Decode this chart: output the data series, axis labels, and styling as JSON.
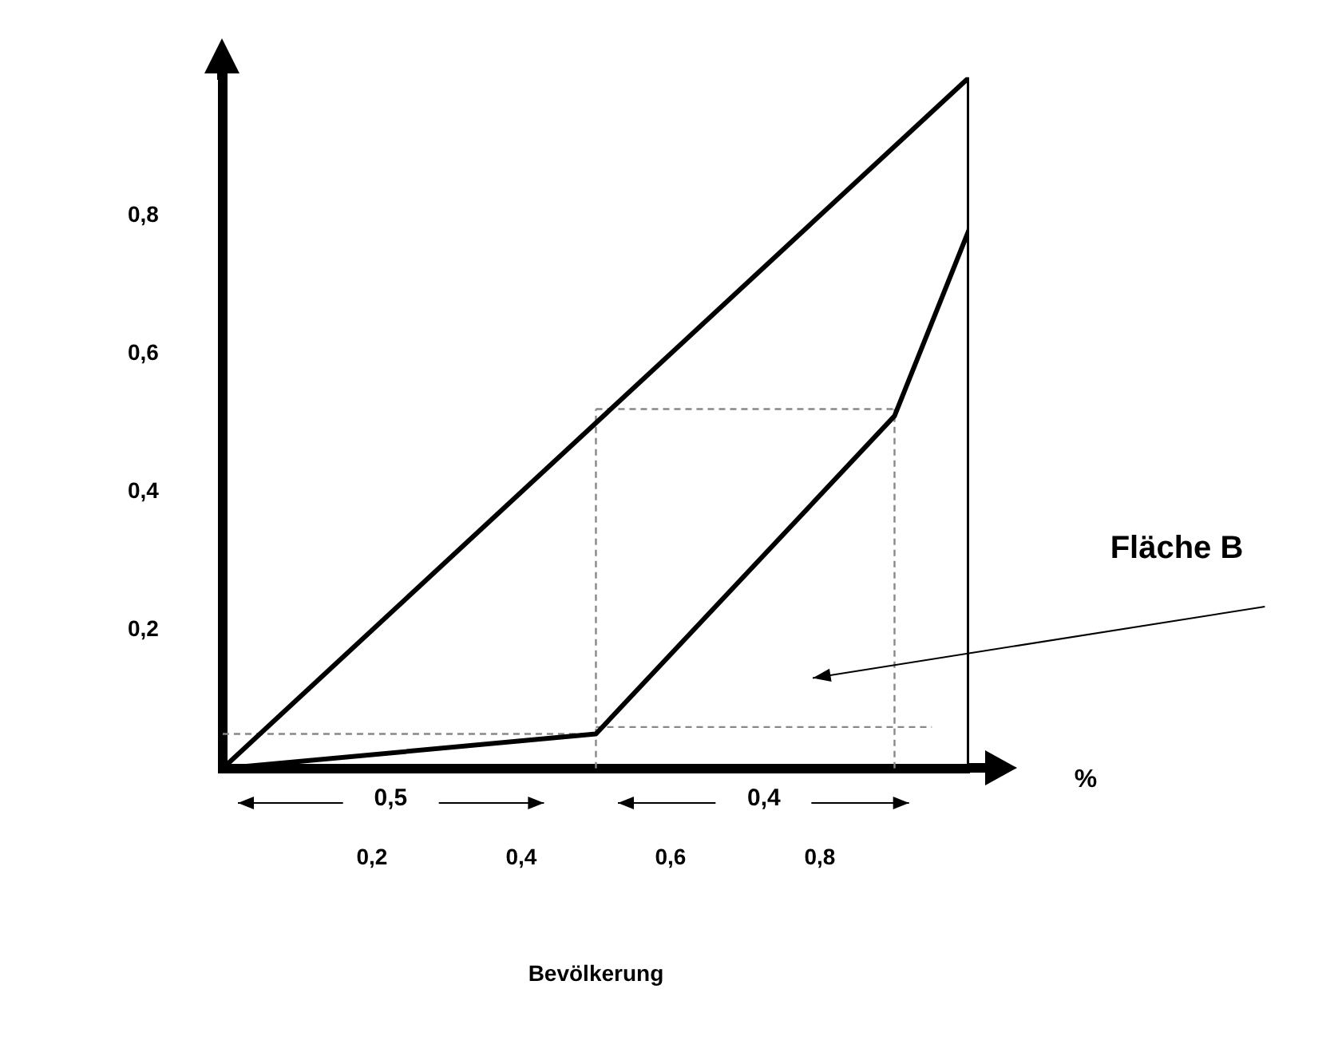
{
  "chart_data": {
    "type": "line",
    "xlabel": "Bevölkerung",
    "xlim": [
      0,
      1
    ],
    "ylim": [
      0,
      1
    ],
    "xticks": [
      {
        "value": 0.2,
        "label": "0,2"
      },
      {
        "value": 0.4,
        "label": "0,4"
      },
      {
        "value": 0.6,
        "label": "0,6"
      },
      {
        "value": 0.8,
        "label": "0,8"
      }
    ],
    "yticks": [
      {
        "value": 0.2,
        "label": "0,2"
      },
      {
        "value": 0.4,
        "label": "0,4"
      },
      {
        "value": 0.6,
        "label": "0,6"
      },
      {
        "value": 0.8,
        "label": "0,8"
      }
    ],
    "grid": false,
    "legend": false,
    "marker": "none",
    "series": [
      {
        "type": "line",
        "color": "#000000",
        "line_style": "solid",
        "x": [
          0,
          1
        ],
        "values": [
          0,
          1
        ]
      },
      {
        "type": "line",
        "color": "#000000",
        "line_style": "solid",
        "x": [
          0,
          0.5,
          0.9,
          1
        ],
        "values": [
          0,
          0.05,
          0.51,
          0.78
        ]
      },
      {
        "type": "line",
        "color": "#000000",
        "line_style": "solid",
        "x": [
          1,
          1
        ],
        "values": [
          0,
          1
        ]
      },
      {
        "type": "line",
        "color": "#888888",
        "line_style": "dashed",
        "x": [
          0,
          0.5
        ],
        "values": [
          0.05,
          0.05
        ]
      },
      {
        "type": "line",
        "color": "#888888",
        "line_style": "dashed",
        "x": [
          0.5,
          0.95
        ],
        "values": [
          0.06,
          0.06
        ]
      },
      {
        "type": "line",
        "color": "#888888",
        "line_style": "dashed",
        "x": [
          0.5,
          0.5
        ],
        "values": [
          0,
          0.52
        ]
      },
      {
        "type": "line",
        "color": "#888888",
        "line_style": "dashed",
        "x": [
          0.5,
          0.9
        ],
        "values": [
          0.52,
          0.52
        ]
      },
      {
        "type": "line",
        "color": "#888888",
        "line_style": "dashed",
        "x": [
          0.9,
          0.9
        ],
        "values": [
          0,
          0.52
        ]
      }
    ],
    "annotations": [
      "0,5",
      "0,4",
      "%",
      "Fläche B"
    ]
  }
}
